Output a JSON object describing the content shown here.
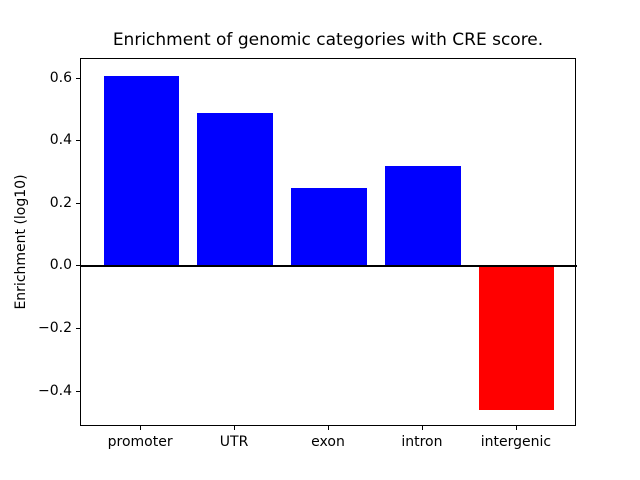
{
  "chart_data": {
    "type": "bar",
    "title": "Enrichment of genomic categories with CRE score.",
    "xlabel": "",
    "ylabel": "Enrichment (log10)",
    "categories": [
      "promoter",
      "UTR",
      "exon",
      "intron",
      "intergenic"
    ],
    "values": [
      0.61,
      0.49,
      0.25,
      0.32,
      -0.46
    ],
    "bar_width": 0.8,
    "colors": {
      "positive_bar": "#0000ff",
      "negative_bar": "#ff0000",
      "axis": "#000000",
      "background": "#ffffff"
    },
    "ylim": [
      -0.5135,
      0.6635
    ],
    "xlim": [
      -0.64,
      4.64
    ],
    "yticks": [
      0.6,
      0.4,
      0.2,
      0.0,
      -0.2,
      -0.4
    ],
    "ytick_labels": [
      "0.6",
      "0.4",
      "0.2",
      "0.0",
      "−0.2",
      "−0.4"
    ],
    "zero_line": true,
    "grid": false,
    "legend": null
  }
}
